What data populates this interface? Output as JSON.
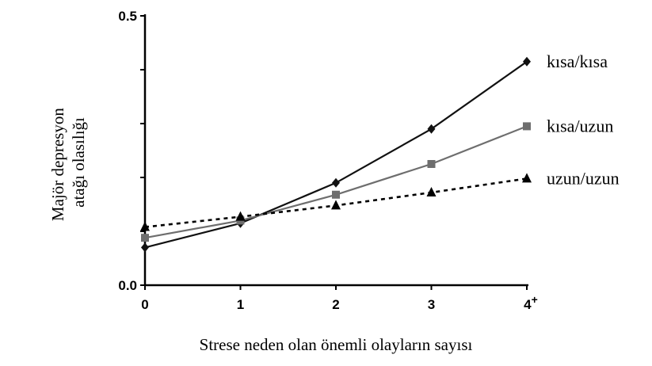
{
  "chart_data": {
    "type": "line",
    "categories": [
      "0",
      "1",
      "2",
      "3",
      "4+"
    ],
    "x_tick_labels": [
      {
        "main": "0",
        "sup": ""
      },
      {
        "main": "1",
        "sup": ""
      },
      {
        "main": "2",
        "sup": ""
      },
      {
        "main": "3",
        "sup": ""
      },
      {
        "main": "4",
        "sup": "+"
      }
    ],
    "y_ticks": [
      {
        "value": 0.0,
        "label": "0.0"
      },
      {
        "value": 0.1,
        "label": ""
      },
      {
        "value": 0.2,
        "label": ""
      },
      {
        "value": 0.3,
        "label": ""
      },
      {
        "value": 0.4,
        "label": ""
      },
      {
        "value": 0.5,
        "label": "0.5"
      }
    ],
    "ylim": [
      0,
      0.5
    ],
    "xlabel": "Strese neden olan önemli olayların sayısı",
    "ylabel_lines": [
      "Majör depresyon",
      "atağı olasılığı"
    ],
    "grid": false,
    "legend_placement": "right, beside line ends",
    "series": [
      {
        "name": "kısa/kısa",
        "values": [
          0.07,
          0.115,
          0.19,
          0.29,
          0.415
        ],
        "color": "#111111",
        "marker": "diamond",
        "dash": "solid"
      },
      {
        "name": "kısa/uzun",
        "values": [
          0.088,
          0.12,
          0.168,
          0.225,
          0.295
        ],
        "color": "#6e6e6e",
        "marker": "square",
        "dash": "solid"
      },
      {
        "name": "uzun/uzun",
        "values": [
          0.108,
          0.127,
          0.148,
          0.172,
          0.198
        ],
        "color": "#000000",
        "marker": "triangle",
        "dash": "dashed"
      }
    ]
  }
}
